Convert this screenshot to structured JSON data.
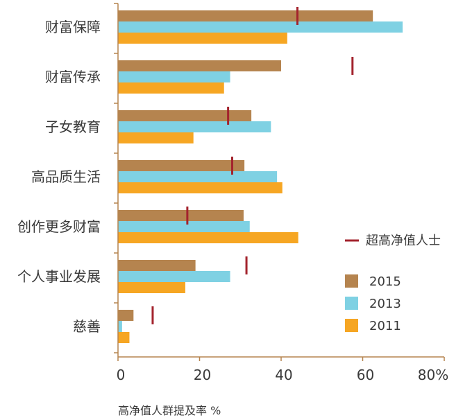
{
  "chart_data": {
    "type": "bar",
    "orientation": "horizontal",
    "categories": [
      "财富保障",
      "财富传承",
      "子女教育",
      "高品质生活",
      "创作更多财富",
      "个人事业发展",
      "慈善"
    ],
    "series": [
      {
        "name": "2015",
        "color": "#b5844f",
        "values": [
          62.5,
          40,
          32.7,
          31,
          30.8,
          19,
          3.8
        ]
      },
      {
        "name": "2013",
        "color": "#7fd1e3",
        "values": [
          69.8,
          27.5,
          37.5,
          39,
          32.3,
          27.5,
          1
        ]
      },
      {
        "name": "2011",
        "color": "#f6a623",
        "values": [
          41.5,
          26,
          18.5,
          40.3,
          44.2,
          16.5,
          2.8
        ]
      }
    ],
    "markers": {
      "name": "超高净值人士",
      "color": "#a3232d",
      "values": [
        44,
        57.5,
        27,
        28,
        17,
        31.5,
        8.5
      ]
    },
    "xlim": [
      0,
      80
    ],
    "xticks": [
      "0",
      "20",
      "40",
      "60",
      "80%"
    ],
    "xlabel": "高净值人群提及率 %",
    "legend_position": "right"
  }
}
